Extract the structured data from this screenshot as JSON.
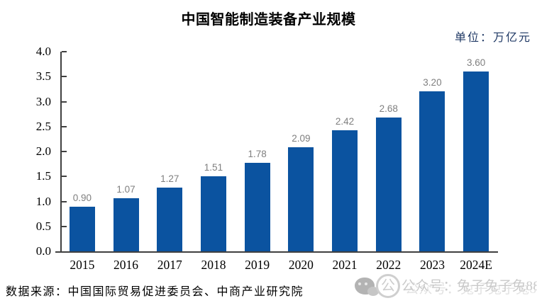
{
  "chart_data": {
    "type": "bar",
    "title": "中国智能制造装备产业规模",
    "unit": "单位：万亿元",
    "categories": [
      "2015",
      "2016",
      "2017",
      "2018",
      "2019",
      "2020",
      "2021",
      "2022",
      "2023",
      "2024E"
    ],
    "values": [
      0.9,
      1.07,
      1.27,
      1.51,
      1.78,
      2.09,
      2.42,
      2.68,
      3.2,
      3.6
    ],
    "value_labels": [
      "0.90",
      "1.07",
      "1.27",
      "1.51",
      "1.78",
      "2.09",
      "2.42",
      "2.68",
      "3.20",
      "3.60"
    ],
    "xlabel": "",
    "ylabel": "",
    "ylim": [
      0.0,
      4.0
    ],
    "y_ticks": [
      "0.0",
      "0.5",
      "1.0",
      "1.5",
      "2.0",
      "2.5",
      "3.0",
      "3.5",
      "4.0"
    ],
    "grid": false,
    "legend": false,
    "colors": {
      "bar": "#0B53A0",
      "value_label": "#7F7F7F",
      "axis": "#404040",
      "unit_text": "#1F3864"
    }
  },
  "footer": {
    "source_label": "数据来源：",
    "source_text": "中国国际贸易促进委员会、中商产业研究院"
  },
  "watermark": {
    "wechat_icon": "wechat-icon",
    "logo_char": "公",
    "text": "公众号：兔子兔子兔888"
  }
}
